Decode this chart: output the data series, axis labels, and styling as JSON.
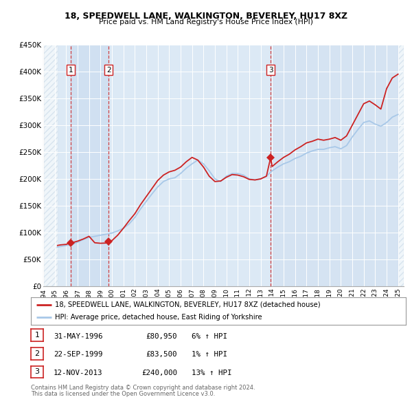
{
  "title": "18, SPEEDWELL LANE, WALKINGTON, BEVERLEY, HU17 8XZ",
  "subtitle": "Price paid vs. HM Land Registry's House Price Index (HPI)",
  "legend_property": "18, SPEEDWELL LANE, WALKINGTON, BEVERLEY, HU17 8XZ (detached house)",
  "legend_hpi": "HPI: Average price, detached house, East Riding of Yorkshire",
  "footer1": "Contains HM Land Registry data © Crown copyright and database right 2024.",
  "footer2": "This data is licensed under the Open Government Licence v3.0.",
  "transactions": [
    {
      "num": 1,
      "date": "31-MAY-1996",
      "price": 80950,
      "pct": "6%",
      "year": 1996.42
    },
    {
      "num": 2,
      "date": "22-SEP-1999",
      "price": 83500,
      "pct": "1%",
      "year": 1999.72
    },
    {
      "num": 3,
      "date": "12-NOV-2013",
      "price": 240000,
      "pct": "13%",
      "year": 2013.87
    }
  ],
  "property_color": "#cc2222",
  "hpi_color": "#a8c8e8",
  "vline_color": "#cc2222",
  "background_color": "#dce9f5",
  "hatch_color": "#c8d8e8",
  "grid_color": "#ffffff",
  "ylim": [
    0,
    450000
  ],
  "xlim_start": 1994.0,
  "xlim_end": 2025.5,
  "data_start": 1995.25,
  "data_end": 2025.0,
  "hpi_years": [
    1995.25,
    1995.5,
    1996.0,
    1996.5,
    1997.0,
    1997.5,
    1998.0,
    1998.5,
    1999.0,
    1999.5,
    2000.0,
    2000.5,
    2001.0,
    2001.5,
    2002.0,
    2002.5,
    2003.0,
    2003.5,
    2004.0,
    2004.5,
    2005.0,
    2005.5,
    2006.0,
    2006.5,
    2007.0,
    2007.5,
    2008.0,
    2008.5,
    2009.0,
    2009.5,
    2010.0,
    2010.5,
    2011.0,
    2011.5,
    2012.0,
    2012.5,
    2013.0,
    2013.5,
    2014.0,
    2014.5,
    2015.0,
    2015.5,
    2016.0,
    2016.5,
    2017.0,
    2017.5,
    2018.0,
    2018.5,
    2019.0,
    2019.5,
    2020.0,
    2020.5,
    2021.0,
    2021.5,
    2022.0,
    2022.5,
    2023.0,
    2023.5,
    2024.0,
    2024.5,
    2025.0
  ],
  "hpi_values": [
    73000,
    74000,
    76000,
    78000,
    82000,
    87000,
    91000,
    93000,
    95000,
    97000,
    99000,
    103000,
    108000,
    116000,
    128000,
    144000,
    158000,
    172000,
    185000,
    195000,
    200000,
    202000,
    210000,
    220000,
    228000,
    235000,
    228000,
    215000,
    200000,
    195000,
    205000,
    210000,
    210000,
    207000,
    200000,
    198000,
    200000,
    205000,
    215000,
    222000,
    228000,
    232000,
    238000,
    242000,
    248000,
    252000,
    255000,
    255000,
    258000,
    260000,
    256000,
    262000,
    278000,
    292000,
    305000,
    308000,
    302000,
    298000,
    305000,
    315000,
    320000
  ],
  "prop_years": [
    1995.25,
    1995.5,
    1996.0,
    1996.42,
    1996.5,
    1997.0,
    1997.5,
    1998.0,
    1998.5,
    1999.0,
    1999.5,
    1999.72,
    2000.0,
    2000.5,
    2001.0,
    2001.5,
    2002.0,
    2002.5,
    2003.0,
    2003.5,
    2004.0,
    2004.5,
    2005.0,
    2005.5,
    2006.0,
    2006.5,
    2007.0,
    2007.5,
    2008.0,
    2008.5,
    2009.0,
    2009.5,
    2010.0,
    2010.5,
    2011.0,
    2011.5,
    2012.0,
    2012.5,
    2013.0,
    2013.5,
    2013.87,
    2014.0,
    2014.5,
    2015.0,
    2015.5,
    2016.0,
    2016.5,
    2017.0,
    2017.5,
    2018.0,
    2018.5,
    2019.0,
    2019.5,
    2020.0,
    2020.5,
    2021.0,
    2021.5,
    2022.0,
    2022.5,
    2023.0,
    2023.5,
    2024.0,
    2024.5,
    2025.0
  ],
  "prop_values": [
    76000,
    77000,
    78000,
    80950,
    80950,
    84000,
    88000,
    93000,
    81000,
    80000,
    80500,
    83500,
    85000,
    95000,
    108000,
    122000,
    135000,
    152000,
    167000,
    182000,
    197000,
    207000,
    213000,
    216000,
    222000,
    232000,
    240000,
    235000,
    222000,
    205000,
    195000,
    196000,
    203000,
    208000,
    207000,
    204000,
    199000,
    198000,
    200000,
    205000,
    240000,
    223000,
    232000,
    240000,
    246000,
    254000,
    260000,
    267000,
    270000,
    274000,
    272000,
    274000,
    277000,
    272000,
    280000,
    300000,
    320000,
    340000,
    345000,
    338000,
    330000,
    368000,
    388000,
    395000
  ]
}
